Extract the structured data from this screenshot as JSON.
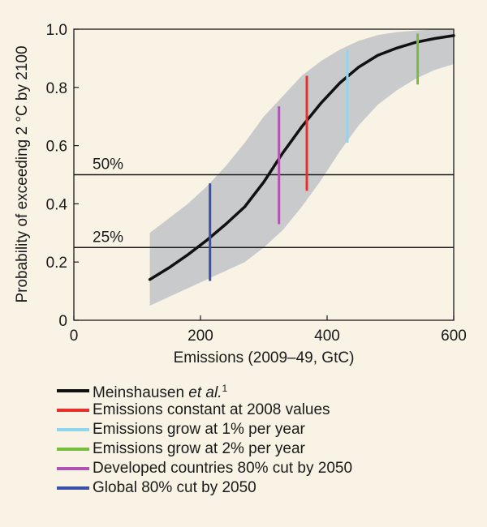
{
  "chart_data": {
    "type": "line",
    "title": "",
    "xlabel": "Emissions (2009–49, GtC)",
    "ylabel": "Probability of exceeding 2 °C by 2100",
    "xlim": [
      0,
      600
    ],
    "ylim": [
      0,
      1.0
    ],
    "xticks": [
      0,
      200,
      400,
      600
    ],
    "yticks": [
      0,
      0.2,
      0.4,
      0.6,
      0.8,
      1.0
    ],
    "xtick_labels": [
      "0",
      "200",
      "400",
      "600"
    ],
    "ytick_labels": [
      "0",
      "0.2",
      "0.4",
      "0.6",
      "0.8",
      "1.0"
    ],
    "grid": false,
    "series": [
      {
        "name": "Meinshausen et al.",
        "citation": "1",
        "color": "#111111",
        "x": [
          120,
          150,
          180,
          210,
          240,
          270,
          300,
          330,
          360,
          390,
          420,
          450,
          480,
          510,
          540,
          570,
          600
        ],
        "y": [
          0.14,
          0.18,
          0.225,
          0.275,
          0.33,
          0.39,
          0.475,
          0.575,
          0.665,
          0.745,
          0.815,
          0.87,
          0.91,
          0.935,
          0.955,
          0.968,
          0.978
        ]
      }
    ],
    "uncertainty_band": {
      "color": "#c9cacc",
      "x": [
        120,
        150,
        180,
        210,
        240,
        270,
        300,
        330,
        360,
        390,
        420,
        450,
        480,
        510,
        540,
        570,
        600
      ],
      "lower": [
        0.05,
        0.08,
        0.11,
        0.14,
        0.17,
        0.2,
        0.25,
        0.31,
        0.39,
        0.48,
        0.58,
        0.67,
        0.74,
        0.79,
        0.83,
        0.86,
        0.88
      ],
      "upper": [
        0.3,
        0.35,
        0.4,
        0.46,
        0.53,
        0.61,
        0.7,
        0.77,
        0.84,
        0.89,
        0.93,
        0.96,
        0.98,
        0.99,
        0.995,
        1.0,
        1.0
      ]
    },
    "reference_lines": [
      {
        "y": 0.5,
        "label": "50%"
      },
      {
        "y": 0.25,
        "label": "25%"
      }
    ],
    "scenarios": [
      {
        "name": "Emissions constant at 2008 values",
        "x": 368,
        "y_low": 0.445,
        "y_high": 0.84,
        "color": "#e8302a"
      },
      {
        "name": "Emissions grow at 1% per year",
        "x": 432,
        "y_low": 0.61,
        "y_high": 0.93,
        "color": "#8fd6ef"
      },
      {
        "name": "Emissions grow at 2% per year",
        "x": 543,
        "y_low": 0.81,
        "y_high": 0.985,
        "color": "#76bd3f"
      },
      {
        "name": "Developed countries 80% cut by 2050",
        "x": 324,
        "y_low": 0.33,
        "y_high": 0.735,
        "color": "#b153b2"
      },
      {
        "name": "Global 80% cut by 2050",
        "x": 215,
        "y_low": 0.135,
        "y_high": 0.47,
        "color": "#3c4fa8"
      }
    ],
    "legend": [
      {
        "label": "Meinshausen et al.",
        "sup": "1",
        "color": "#111111"
      },
      {
        "label": "Emissions constant at 2008 values",
        "color": "#e8302a"
      },
      {
        "label": "Emissions grow at 1% per year",
        "color": "#8fd6ef"
      },
      {
        "label": "Emissions grow at 2% per year",
        "color": "#76bd3f"
      },
      {
        "label": "Developed countries 80% cut by 2050",
        "color": "#b153b2"
      },
      {
        "label": "Global 80% cut by 2050",
        "color": "#3c4fa8"
      }
    ],
    "legend_position": "bottom"
  },
  "background_color": "#f8f3e4"
}
